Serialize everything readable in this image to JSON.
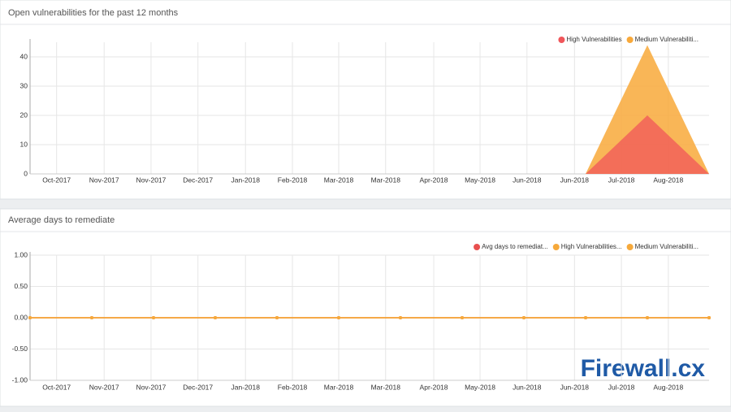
{
  "chart_data": [
    {
      "type": "area",
      "title": "Open vulnerabilities for the past 12 months",
      "x": [
        0,
        1,
        2,
        3,
        4,
        5,
        6,
        7,
        8,
        9,
        10,
        11
      ],
      "xlim": [
        0,
        11
      ],
      "xticks": [
        {
          "value": 0.43,
          "label": "Oct-2017"
        },
        {
          "value": 1.2,
          "label": "Nov-2017"
        },
        {
          "value": 1.96,
          "label": "Nov-2017"
        },
        {
          "value": 2.72,
          "label": "Dec-2017"
        },
        {
          "value": 3.49,
          "label": "Jan-2018"
        },
        {
          "value": 4.25,
          "label": "Feb-2018"
        },
        {
          "value": 5.0,
          "label": "Mar-2018"
        },
        {
          "value": 5.76,
          "label": "Mar-2018"
        },
        {
          "value": 6.54,
          "label": "Apr-2018"
        },
        {
          "value": 7.29,
          "label": "May-2018"
        },
        {
          "value": 8.05,
          "label": "Jun-2018"
        },
        {
          "value": 8.82,
          "label": "Jun-2018"
        },
        {
          "value": 9.58,
          "label": "Jul-2018"
        },
        {
          "value": 10.34,
          "label": "Aug-2018"
        }
      ],
      "ylim": [
        0,
        45
      ],
      "yticks": [
        0,
        10,
        20,
        30,
        40
      ],
      "grid": true,
      "legend": "top-right",
      "series": [
        {
          "name": "High Vulnerabilities",
          "color": "#f0565a",
          "values": [
            0,
            0,
            0,
            0,
            0,
            0,
            0,
            0,
            0,
            0,
            20,
            0
          ]
        },
        {
          "name": "Medium Vulnerabiliti...",
          "color": "#f8a93a",
          "values": [
            0,
            0,
            0,
            0,
            0,
            0,
            0,
            0,
            0,
            0,
            44,
            0
          ]
        }
      ]
    },
    {
      "type": "line",
      "title": "Average days to remediate",
      "x": [
        0,
        1,
        2,
        3,
        4,
        5,
        6,
        7,
        8,
        9,
        10,
        11
      ],
      "xlim": [
        0,
        11
      ],
      "xticks": [
        {
          "value": 0.43,
          "label": "Oct-2017"
        },
        {
          "value": 1.2,
          "label": "Nov-2017"
        },
        {
          "value": 1.96,
          "label": "Nov-2017"
        },
        {
          "value": 2.72,
          "label": "Dec-2017"
        },
        {
          "value": 3.49,
          "label": "Jan-2018"
        },
        {
          "value": 4.25,
          "label": "Feb-2018"
        },
        {
          "value": 5.0,
          "label": "Mar-2018"
        },
        {
          "value": 5.76,
          "label": "Mar-2018"
        },
        {
          "value": 6.54,
          "label": "Apr-2018"
        },
        {
          "value": 7.29,
          "label": "May-2018"
        },
        {
          "value": 8.05,
          "label": "Jun-2018"
        },
        {
          "value": 8.82,
          "label": "Jun-2018"
        },
        {
          "value": 9.58,
          "label": "Jul-2018"
        },
        {
          "value": 10.34,
          "label": "Aug-2018"
        }
      ],
      "ylim": [
        -1,
        1
      ],
      "yticks": [
        {
          "value": -1,
          "label": "-1.00"
        },
        {
          "value": -0.5,
          "label": "-0.50"
        },
        {
          "value": 0,
          "label": "0.00"
        },
        {
          "value": 0.5,
          "label": "0.50"
        },
        {
          "value": 1,
          "label": "1.00"
        }
      ],
      "grid": true,
      "legend": "top-right",
      "series": [
        {
          "name": "Avg days to remediat...",
          "color": "#e8504f",
          "values": [
            0,
            0,
            0,
            0,
            0,
            0,
            0,
            0,
            0,
            0,
            0,
            0
          ]
        },
        {
          "name": "High Vulnerabilities...",
          "color": "#f6a93b",
          "values": [
            0,
            0,
            0,
            0,
            0,
            0,
            0,
            0,
            0,
            0,
            0,
            0
          ]
        },
        {
          "name": "Medium Vulnerabiliti...",
          "color": "#f6a93b",
          "values": [
            0,
            0,
            0,
            0,
            0,
            0,
            0,
            0,
            0,
            0,
            0,
            0
          ]
        }
      ]
    }
  ],
  "watermark": "Firewall.cx"
}
